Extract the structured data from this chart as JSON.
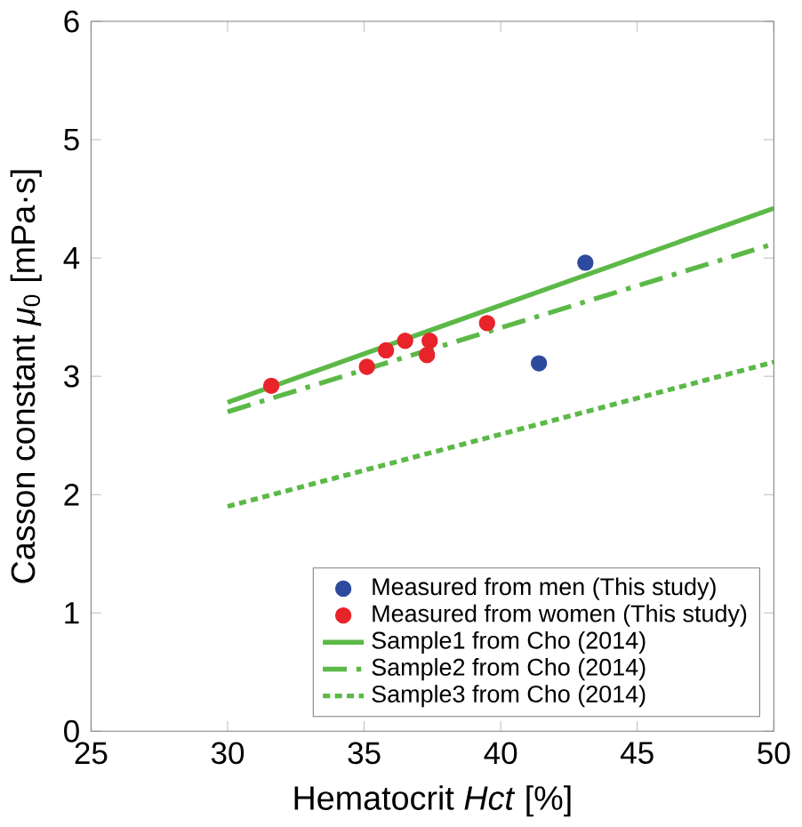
{
  "chart_data": {
    "type": "scatter",
    "xlabel": "Hematocrit *Hct* [%]",
    "ylabel": "Casson constant *μ*$_{0}$ [mPa·s]",
    "xlim": [
      25,
      50
    ],
    "ylim": [
      0,
      6
    ],
    "xticks": [
      25,
      30,
      35,
      40,
      45,
      50
    ],
    "yticks": [
      0,
      1,
      2,
      3,
      4,
      5,
      6
    ],
    "grid": false,
    "legend": "bottom right",
    "series": [
      {
        "name": "Measured from men (This study)",
        "marker": "circle",
        "color": "#2e4a9e",
        "x": [
          41.4,
          43.1
        ],
        "values": [
          3.11,
          3.96
        ]
      },
      {
        "name": "Measured from women (This study)",
        "marker": "circle",
        "color": "#e8232a",
        "x": [
          31.6,
          35.1,
          35.8,
          36.5,
          37.4,
          37.3,
          39.5
        ],
        "values": [
          2.92,
          3.08,
          3.22,
          3.3,
          3.3,
          3.18,
          3.45
        ]
      },
      {
        "name": "Sample1 from Cho (2014)",
        "type": "line",
        "line_style": "solid",
        "color": "#5cb947",
        "x": [
          30,
          50
        ],
        "values": [
          2.78,
          4.42
        ]
      },
      {
        "name": "Sample2 from Cho (2014)",
        "type": "line",
        "line_style": "dashdot",
        "color": "#5cb947",
        "x": [
          30,
          50
        ],
        "values": [
          2.7,
          4.12
        ]
      },
      {
        "name": "Sample3 from Cho (2014)",
        "type": "line",
        "line_style": "dotted",
        "color": "#5cb947",
        "x": [
          30,
          50
        ],
        "values": [
          1.9,
          3.12
        ]
      }
    ]
  }
}
